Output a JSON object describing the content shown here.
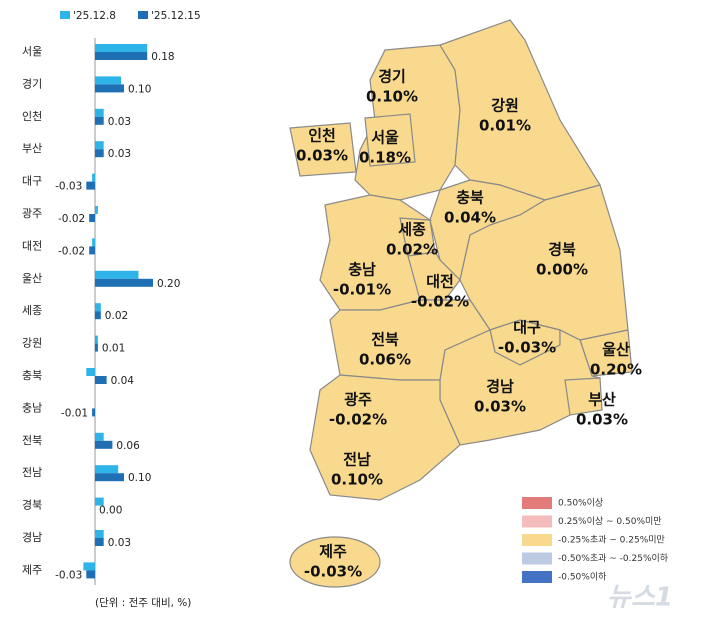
{
  "chart_data": {
    "type": "bar",
    "orientation": "horizontal",
    "categories": [
      "서울",
      "경기",
      "인천",
      "부산",
      "대구",
      "광주",
      "대전",
      "울산",
      "세종",
      "강원",
      "충북",
      "충남",
      "전북",
      "전남",
      "경북",
      "경남",
      "제주"
    ],
    "series": [
      {
        "name": "'25.12.8",
        "color": "#2fb4e9",
        "values": [
          0.18,
          0.09,
          0.03,
          0.03,
          -0.01,
          0.01,
          -0.01,
          0.15,
          0.02,
          0.01,
          -0.03,
          0,
          0.03,
          0.08,
          0.03,
          0.03,
          -0.04
        ]
      },
      {
        "name": "'25.12.15",
        "color": "#1f6fb5",
        "values": [
          0.18,
          0.1,
          0.03,
          0.03,
          -0.03,
          -0.02,
          -0.02,
          0.2,
          0.02,
          0.01,
          0.04,
          -0.01,
          0.06,
          0.1,
          0,
          0.03,
          -0.03
        ],
        "value_labels": [
          "0.18",
          "0.10",
          "0.03",
          "0.03",
          "-0.03",
          "-0.02",
          "-0.02",
          "0.20",
          "0.02",
          "0.01",
          "0.04",
          "-0.01",
          "0.06",
          "0.10",
          "0.00",
          "0.03",
          "-0.03"
        ]
      }
    ],
    "xlim": [
      -0.1,
      0.3
    ],
    "note": "(단위 : 전주 대비, %)"
  },
  "map": {
    "fill": "#f8d98e",
    "regions": [
      {
        "name": "경기",
        "value": 0.1,
        "value_label": "0.10%"
      },
      {
        "name": "강원",
        "value": 0.01,
        "value_label": "0.01%"
      },
      {
        "name": "인천",
        "value": 0.03,
        "value_label": "0.03%"
      },
      {
        "name": "서울",
        "value": 0.18,
        "value_label": "0.18%"
      },
      {
        "name": "충북",
        "value": 0.04,
        "value_label": "0.04%"
      },
      {
        "name": "세종",
        "value": 0.02,
        "value_label": "0.02%"
      },
      {
        "name": "경북",
        "value": 0,
        "value_label": "0.00%"
      },
      {
        "name": "충남",
        "value": -0.01,
        "value_label": "-0.01%"
      },
      {
        "name": "대전",
        "value": -0.02,
        "value_label": "-0.02%"
      },
      {
        "name": "전북",
        "value": 0.06,
        "value_label": "0.06%"
      },
      {
        "name": "대구",
        "value": -0.03,
        "value_label": "-0.03%"
      },
      {
        "name": "울산",
        "value": 0.2,
        "value_label": "0.20%"
      },
      {
        "name": "광주",
        "value": -0.02,
        "value_label": "-0.02%"
      },
      {
        "name": "경남",
        "value": 0.03,
        "value_label": "0.03%"
      },
      {
        "name": "부산",
        "value": 0.03,
        "value_label": "0.03%"
      },
      {
        "name": "전남",
        "value": 0.1,
        "value_label": "0.10%"
      },
      {
        "name": "제주",
        "value": -0.03,
        "value_label": "-0.03%"
      }
    ],
    "legend": [
      {
        "label": "0.50%이상",
        "color": "#e47b7b"
      },
      {
        "label": "0.25%이상 ~ 0.50%미만",
        "color": "#f4bcbc"
      },
      {
        "label": "-0.25%초과 ~ 0.25%미만",
        "color": "#f8d98e"
      },
      {
        "label": "-0.50%초과 ~ -0.25%이하",
        "color": "#bccbe3"
      },
      {
        "label": "-0.50%이하",
        "color": "#4472c4"
      }
    ]
  },
  "watermark": "뉴스1"
}
